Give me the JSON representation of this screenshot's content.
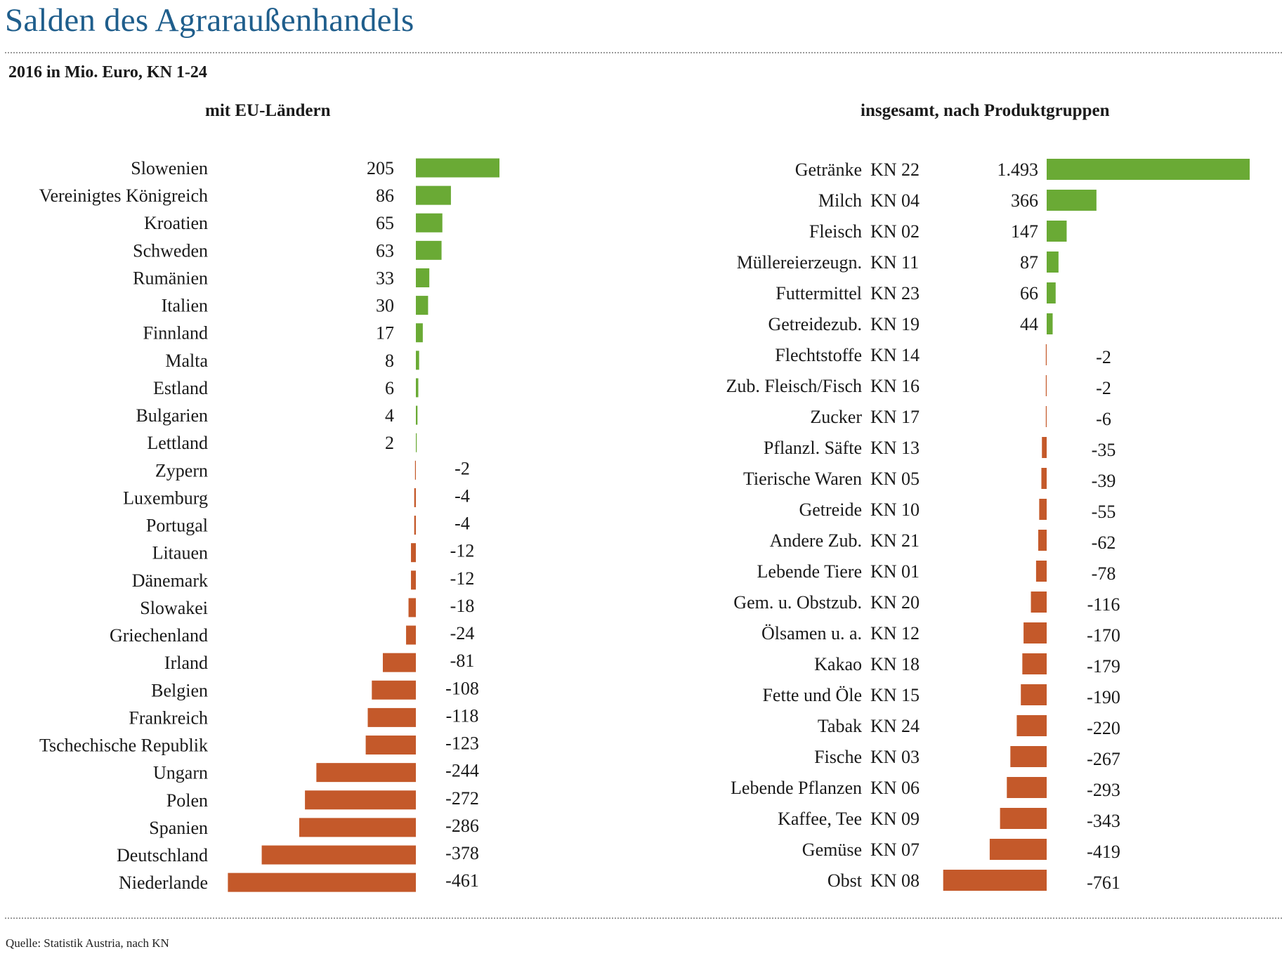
{
  "title": "Salden des Agraraußenhandels",
  "subtitle": "2016 in Mio. Euro, KN 1-24",
  "source": "Quelle: Statistik Austria, nach KN",
  "colors": {
    "positive": "#6aaa35",
    "negative": "#c4592a",
    "title": "#1f5e8c"
  },
  "chart_data": [
    {
      "type": "bar",
      "orientation": "horizontal",
      "title": "mit EU-Ländern",
      "categories": [
        "Slowenien",
        "Vereinigtes Königreich",
        "Kroatien",
        "Schweden",
        "Rumänien",
        "Italien",
        "Finnland",
        "Malta",
        "Estland",
        "Bulgarien",
        "Lettland",
        "Zypern",
        "Luxemburg",
        "Portugal",
        "Litauen",
        "Dänemark",
        "Slowakei",
        "Griechenland",
        "Irland",
        "Belgien",
        "Frankreich",
        "Tschechische Republik",
        "Ungarn",
        "Polen",
        "Spanien",
        "Deutschland",
        "Niederlande"
      ],
      "values": [
        205,
        86,
        65,
        63,
        33,
        30,
        17,
        8,
        6,
        4,
        2,
        -2,
        -4,
        -4,
        -12,
        -12,
        -18,
        -24,
        -81,
        -108,
        -118,
        -123,
        -244,
        -272,
        -286,
        -378,
        -461
      ],
      "value_labels": [
        "205",
        "86",
        "65",
        "63",
        "33",
        "30",
        "17",
        "8",
        "6",
        "4",
        "2",
        "-2",
        "-4",
        "-4",
        "-12",
        "-12",
        "-18",
        "-24",
        "-81",
        "-108",
        "-118",
        "-123",
        "-244",
        "-272",
        "-286",
        "-378",
        "-461"
      ],
      "xlim": [
        -461,
        205
      ]
    },
    {
      "type": "bar",
      "orientation": "horizontal",
      "title": "insgesamt, nach Produktgruppen",
      "categories": [
        "Getränke",
        "Milch",
        "Fleisch",
        "Müllereierzeugn.",
        "Futtermittel",
        "Getreidezub.",
        "Flechtstoffe",
        "Zub. Fleisch/Fisch",
        "Zucker",
        "Pflanzl. Säfte",
        "Tierische Waren",
        "Getreide",
        "Andere Zub.",
        "Lebende Tiere",
        "Gem. u. Obstzub.",
        "Ölsamen u. a.",
        "Kakao",
        "Fette und Öle",
        "Tabak",
        "Fische",
        "Lebende Pflanzen",
        "Kaffee, Tee",
        "Gemüse",
        "Obst"
      ],
      "codes": [
        "KN 22",
        "KN 04",
        "KN 02",
        "KN 11",
        "KN 23",
        "KN 19",
        "KN 14",
        "KN 16",
        "KN 17",
        "KN 13",
        "KN 05",
        "KN 10",
        "KN 21",
        "KN 01",
        "KN 20",
        "KN 12",
        "KN 18",
        "KN 15",
        "KN 24",
        "KN 03",
        "KN 06",
        "KN 09",
        "KN 07",
        "KN 08"
      ],
      "values": [
        1493,
        366,
        147,
        87,
        66,
        44,
        -2,
        -2,
        -6,
        -35,
        -39,
        -55,
        -62,
        -78,
        -116,
        -170,
        -179,
        -190,
        -220,
        -267,
        -293,
        -343,
        -419,
        -761
      ],
      "value_labels": [
        "1.493",
        "366",
        "147",
        "87",
        "66",
        "44",
        "-2",
        "-2",
        "-6",
        "-35",
        "-39",
        "-55",
        "-62",
        "-78",
        "-116",
        "-170",
        "-179",
        "-190",
        "-220",
        "-267",
        "-293",
        "-343",
        "-419",
        "-761"
      ],
      "xlim": [
        -761,
        1493
      ]
    }
  ]
}
